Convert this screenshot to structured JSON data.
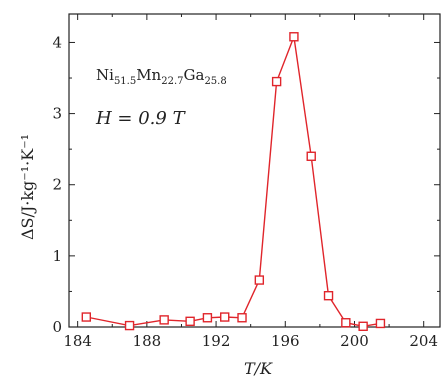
{
  "chart_data": {
    "type": "line",
    "xlabel": "T/K",
    "ylabel": "ΔS/J·kg⁻¹·K⁻¹",
    "xlim": [
      183.5,
      205
    ],
    "ylim": [
      0,
      4.4
    ],
    "xticks": [
      184,
      188,
      192,
      196,
      200,
      204
    ],
    "yticks": [
      0,
      1,
      2,
      3,
      4
    ],
    "grid": false,
    "series": [
      {
        "color": "#e0252b",
        "marker": "square-open",
        "x": [
          184.5,
          187.0,
          189.0,
          190.5,
          191.5,
          192.5,
          193.5,
          194.5,
          195.5,
          196.5,
          197.5,
          198.5,
          199.5,
          200.5,
          201.5
        ],
        "y": [
          0.14,
          0.02,
          0.1,
          0.08,
          0.13,
          0.14,
          0.13,
          0.66,
          3.45,
          4.08,
          2.4,
          0.44,
          0.06,
          0.01,
          0.05
        ]
      }
    ],
    "annotations": {
      "composition": {
        "base": [
          "Ni",
          "Mn",
          "Ga"
        ],
        "subs": [
          "51.5",
          "22.7",
          "25.8"
        ]
      },
      "field": "H = 0.9 T"
    }
  }
}
